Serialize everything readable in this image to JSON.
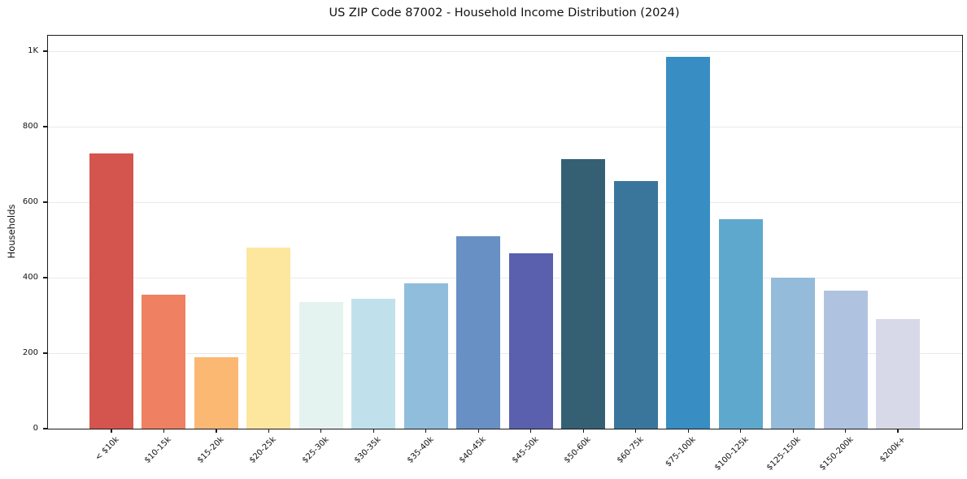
{
  "chart_data": {
    "type": "bar",
    "title": "US ZIP Code 87002 - Household Income Distribution (2024)",
    "xlabel": "",
    "ylabel": "Households",
    "categories": [
      "< $10k",
      "$10-15k",
      "$15-20k",
      "$20-25k",
      "$25-30k",
      "$30-35k",
      "$35-40k",
      "$40-45k",
      "$45-50k",
      "$50-60k",
      "$60-75k",
      "$75-100k",
      "$100-125k",
      "$125-150k",
      "$150-200k",
      "$200k+"
    ],
    "values": [
      730,
      355,
      190,
      480,
      335,
      345,
      385,
      510,
      465,
      715,
      655,
      985,
      555,
      400,
      365,
      290
    ],
    "bar_colors": [
      "#d4544e",
      "#ef8061",
      "#fab873",
      "#fde79f",
      "#e5f3f0",
      "#c0e1ec",
      "#90bddc",
      "#6890c4",
      "#5a5fae",
      "#356074",
      "#3a769c",
      "#388ec2",
      "#5ea8ce",
      "#95bbda",
      "#afc3e1",
      "#d8d9e8"
    ],
    "yticks": [
      {
        "value": 0,
        "label": "0"
      },
      {
        "value": 200,
        "label": "200"
      },
      {
        "value": 400,
        "label": "400"
      },
      {
        "value": 600,
        "label": "600"
      },
      {
        "value": 800,
        "label": "800"
      },
      {
        "value": 1000,
        "label": "1K"
      }
    ],
    "ylim": [
      0,
      1041
    ],
    "grid": "horizontal",
    "legend": "none",
    "frame": "full-box",
    "grid_color": "#e9e9ed",
    "spine_color": "#1a1a1a"
  }
}
